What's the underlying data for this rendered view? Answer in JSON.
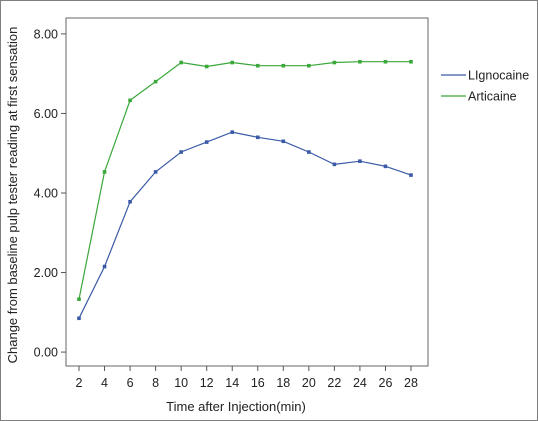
{
  "chart_data": {
    "type": "line",
    "title": "",
    "xlabel": "Time after Injection(min)",
    "ylabel": "Change from baseline pulp tester reading at first sensation",
    "x": [
      2,
      4,
      6,
      8,
      10,
      12,
      14,
      16,
      18,
      20,
      22,
      24,
      26,
      28
    ],
    "x_tick_labels": [
      "2",
      "4",
      "6",
      "8",
      "10",
      "12",
      "14",
      "16",
      "18",
      "20",
      "22",
      "24",
      "26",
      "28"
    ],
    "y_ticks": [
      0,
      2,
      4,
      6,
      8
    ],
    "y_tick_labels": [
      "0.00",
      "2.00",
      "4.00",
      "6.00",
      "8.00"
    ],
    "ylim": [
      -0.35,
      8.4
    ],
    "grid": false,
    "legend_position": "right",
    "series": [
      {
        "name": "LIgnocaine",
        "color": "#3a5aa8",
        "values": [
          0.85,
          2.15,
          3.78,
          4.53,
          5.03,
          5.28,
          5.53,
          5.4,
          5.3,
          5.03,
          4.72,
          4.8,
          4.67,
          4.45
        ]
      },
      {
        "name": "Articaine",
        "color": "#3aa83a",
        "values": [
          1.33,
          4.53,
          6.33,
          6.8,
          7.28,
          7.18,
          7.28,
          7.2,
          7.2,
          7.2,
          7.28,
          7.3,
          7.3,
          7.3
        ]
      }
    ]
  }
}
